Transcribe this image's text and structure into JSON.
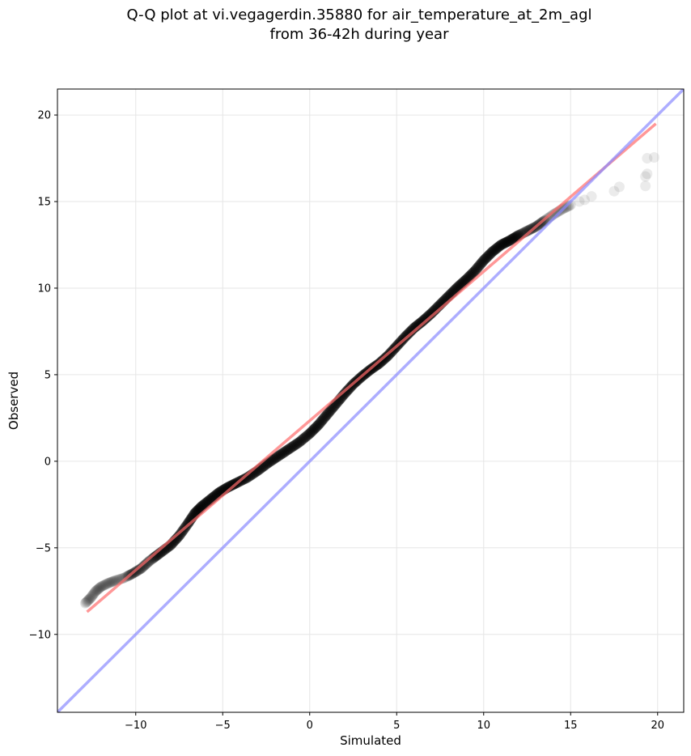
{
  "chart_data": {
    "type": "scatter",
    "title_lines": [
      "Q-Q plot at vi.vegagerdin.35880 for air_temperature_at_2m_agl",
      "from 36-42h during year"
    ],
    "xlabel": "Simulated",
    "ylabel": "Observed",
    "xlim": [
      -14.5,
      21.5
    ],
    "ylim": [
      -14.5,
      21.5
    ],
    "x_ticks": [
      -10,
      -5,
      0,
      5,
      10,
      15,
      20
    ],
    "x_tick_labels": [
      "−10",
      "−5",
      "0",
      "5",
      "10",
      "15",
      "20"
    ],
    "y_ticks": [
      -10,
      -5,
      0,
      5,
      10,
      15,
      20
    ],
    "y_tick_labels": [
      "−10",
      "−5",
      "0",
      "5",
      "10",
      "15",
      "20"
    ],
    "grid": true,
    "quantile_curve": [
      [
        -12.9,
        -8.2
      ],
      [
        -12.6,
        -7.9
      ],
      [
        -12.3,
        -7.5
      ],
      [
        -12.0,
        -7.25
      ],
      [
        -11.6,
        -7.05
      ],
      [
        -11.2,
        -6.9
      ],
      [
        -10.7,
        -6.75
      ],
      [
        -10.2,
        -6.5
      ],
      [
        -9.7,
        -6.2
      ],
      [
        -9.2,
        -5.75
      ],
      [
        -8.6,
        -5.3
      ],
      [
        -8.0,
        -4.85
      ],
      [
        -7.5,
        -4.3
      ],
      [
        -7.0,
        -3.6
      ],
      [
        -6.6,
        -3.0
      ],
      [
        -6.2,
        -2.6
      ],
      [
        -5.7,
        -2.2
      ],
      [
        -5.2,
        -1.8
      ],
      [
        -4.7,
        -1.5
      ],
      [
        -4.2,
        -1.25
      ],
      [
        -3.6,
        -0.95
      ],
      [
        -3.0,
        -0.55
      ],
      [
        -2.4,
        -0.1
      ],
      [
        -1.8,
        0.3
      ],
      [
        -1.2,
        0.7
      ],
      [
        -0.6,
        1.1
      ],
      [
        0.0,
        1.6
      ],
      [
        0.5,
        2.1
      ],
      [
        1.0,
        2.7
      ],
      [
        1.5,
        3.3
      ],
      [
        2.0,
        3.9
      ],
      [
        2.5,
        4.45
      ],
      [
        3.0,
        4.9
      ],
      [
        3.5,
        5.3
      ],
      [
        4.0,
        5.65
      ],
      [
        4.5,
        6.1
      ],
      [
        5.0,
        6.65
      ],
      [
        5.5,
        7.2
      ],
      [
        6.0,
        7.7
      ],
      [
        6.5,
        8.1
      ],
      [
        7.0,
        8.55
      ],
      [
        7.5,
        9.05
      ],
      [
        8.0,
        9.55
      ],
      [
        8.5,
        10.05
      ],
      [
        9.0,
        10.5
      ],
      [
        9.5,
        11.0
      ],
      [
        10.0,
        11.6
      ],
      [
        10.5,
        12.1
      ],
      [
        11.0,
        12.5
      ],
      [
        11.5,
        12.75
      ],
      [
        12.0,
        13.05
      ],
      [
        12.5,
        13.3
      ],
      [
        13.0,
        13.55
      ],
      [
        13.5,
        13.9
      ],
      [
        14.0,
        14.25
      ],
      [
        14.5,
        14.55
      ],
      [
        15.0,
        14.8
      ]
    ],
    "tail_points": [
      [
        15.5,
        15.0
      ],
      [
        15.8,
        15.1
      ],
      [
        16.2,
        15.3
      ],
      [
        17.5,
        15.6
      ],
      [
        17.8,
        15.85
      ],
      [
        19.3,
        15.9
      ],
      [
        19.3,
        16.45
      ],
      [
        19.4,
        16.6
      ],
      [
        19.4,
        17.5
      ],
      [
        19.8,
        17.55
      ]
    ],
    "lines": [
      {
        "role": "linear-fit",
        "color": "#ff6b6b",
        "x": [
          -12.8,
          19.9
        ],
        "y": [
          -8.7,
          19.5
        ]
      },
      {
        "role": "identity",
        "color": "#8a8aff",
        "x": [
          -14.5,
          21.5
        ],
        "y": [
          -14.5,
          21.5
        ]
      }
    ],
    "point_color": "#000000"
  }
}
